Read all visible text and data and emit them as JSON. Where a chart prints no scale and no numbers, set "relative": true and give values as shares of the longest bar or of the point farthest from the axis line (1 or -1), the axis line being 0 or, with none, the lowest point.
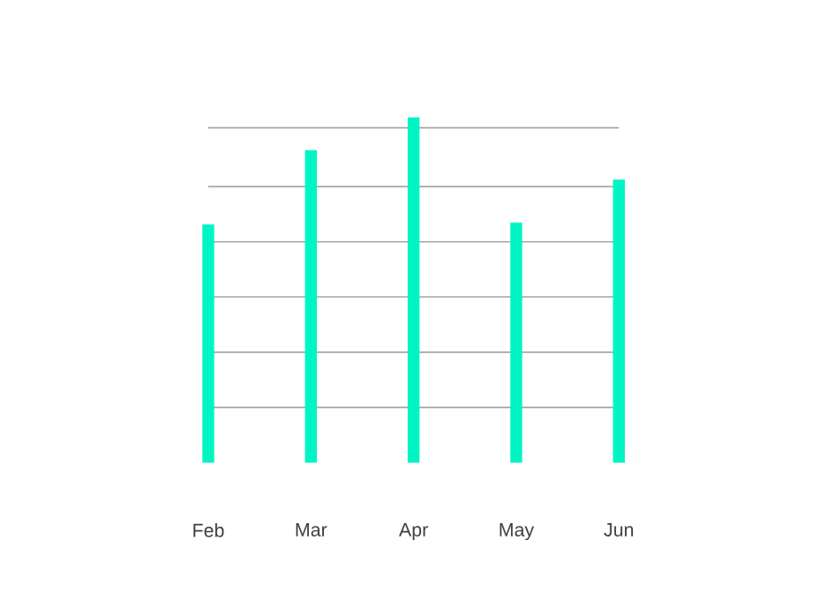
{
  "chart_data": {
    "type": "bar",
    "relative": true,
    "grid": "y",
    "categories": [
      "Feb",
      "Mar",
      "Apr",
      "May",
      "Jun"
    ],
    "values": [
      0.69,
      0.905,
      1,
      0.695,
      0.82
    ],
    "color": "#00f5c4"
  }
}
